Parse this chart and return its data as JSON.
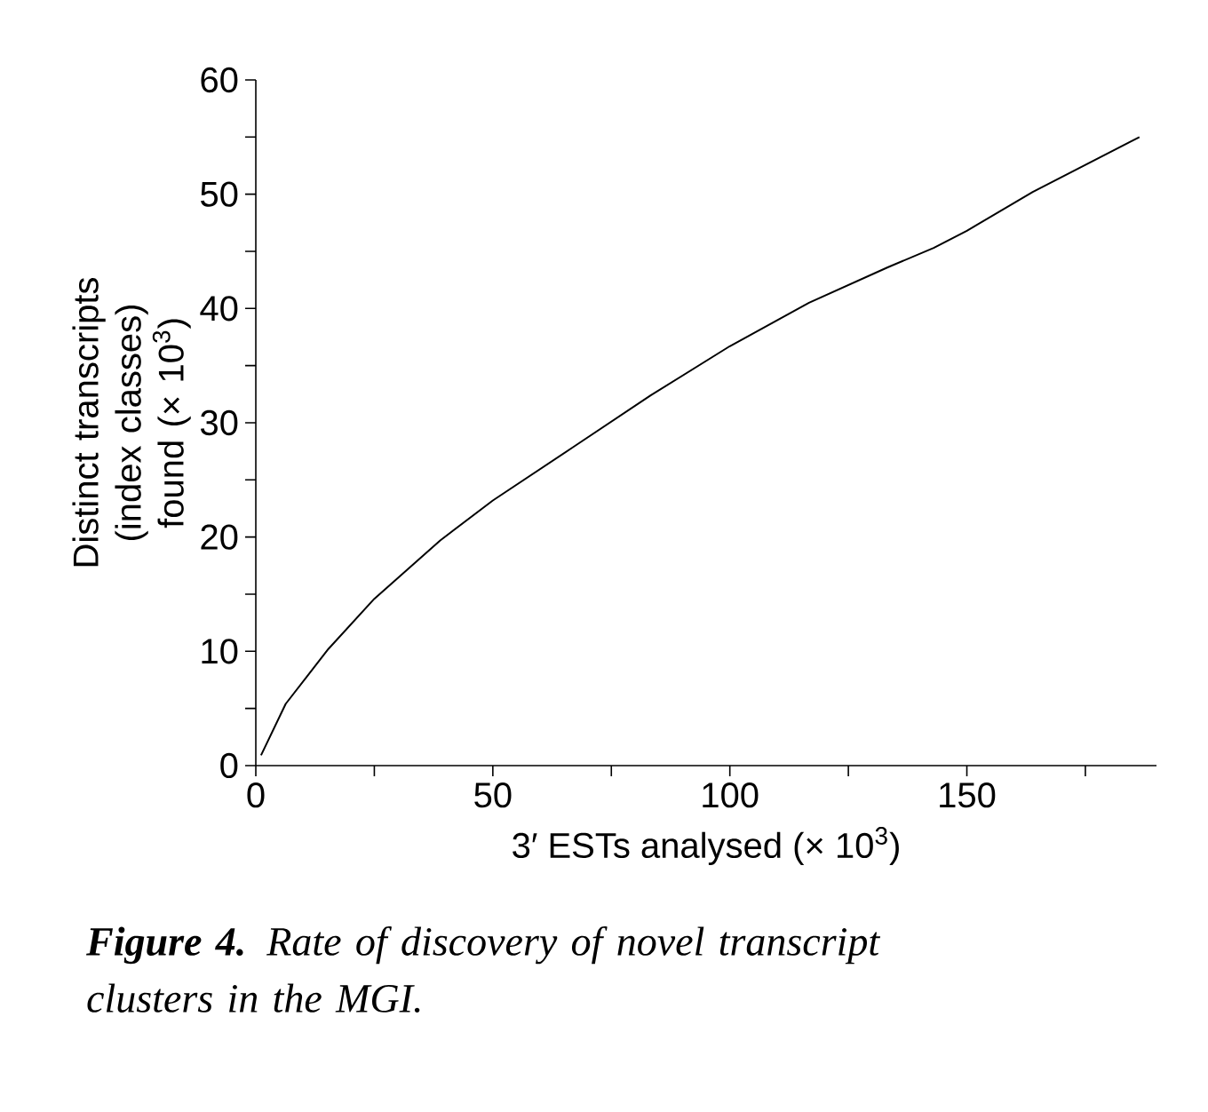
{
  "chart_data": {
    "type": "line",
    "xlabel": "3′ ESTs analysed (× 10$^{3}$)",
    "ylabel": "Distinct transcripts (index classes) found (× 10$^{3}$)",
    "annotations": [
      "**Figure 4.** Rate of discovery of novel transcript clusters in the MGI."
    ],
    "x": [
      1.1,
      6.3,
      15.3,
      25,
      38.9,
      50,
      66.7,
      83.3,
      100,
      116.7,
      133.3,
      143,
      150,
      163.9,
      186.4
    ],
    "values": [
      0.9,
      5.4,
      10.2,
      14.6,
      19.7,
      23.2,
      27.8,
      32.4,
      36.7,
      40.5,
      43.6,
      45.3,
      46.8,
      50.2,
      55
    ],
    "color": "#000000",
    "xlim": [
      0,
      190
    ],
    "ylim": [
      0,
      60
    ],
    "xticks": [
      0,
      {
        "value": 25,
        "label": null
      },
      50,
      {
        "value": 75,
        "label": null
      },
      100,
      {
        "value": 125,
        "label": null
      },
      150,
      {
        "value": 175,
        "label": null
      }
    ],
    "yticks": [
      0,
      {
        "value": 5,
        "label": null
      },
      10,
      {
        "value": 15,
        "label": null
      },
      20,
      {
        "value": 25,
        "label": null
      },
      30,
      {
        "value": 35,
        "label": null
      },
      40,
      {
        "value": 45,
        "label": null
      },
      50,
      {
        "value": 55,
        "label": null
      },
      60
    ],
    "marker": "none",
    "line_style": "solid"
  }
}
